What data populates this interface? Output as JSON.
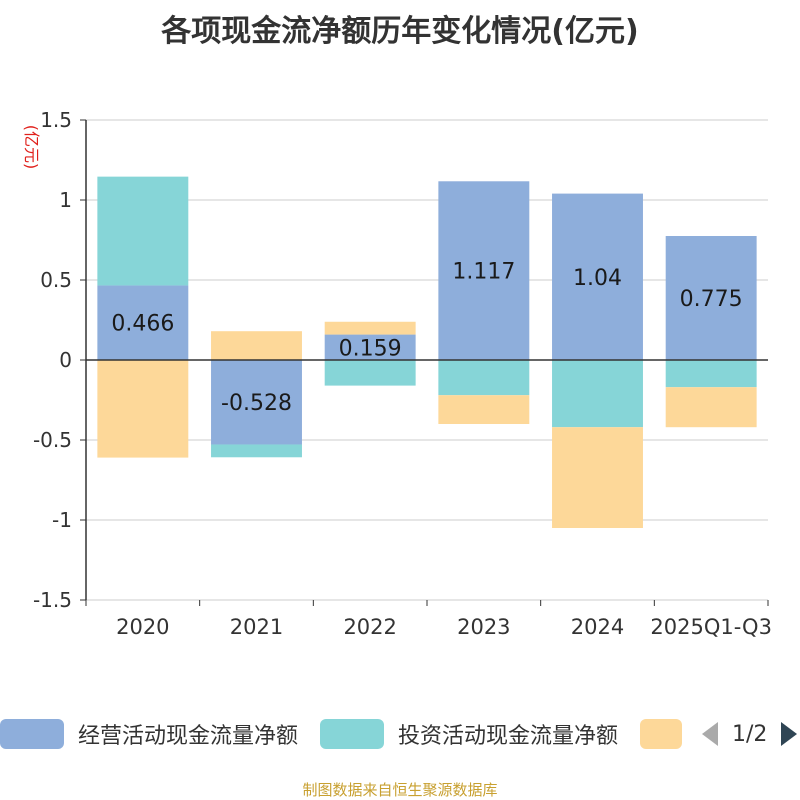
{
  "chart_data": {
    "type": "bar",
    "stacked": true,
    "title": "各项现金流净额历年变化情况(亿元)",
    "ylabel": "(亿元)",
    "xlabel": "",
    "ylim": [
      -1.5,
      1.5
    ],
    "yticks": [
      1.5,
      1,
      0.5,
      0,
      -0.5,
      -1,
      -1.5
    ],
    "ytick_labels": [
      "1.5",
      "1",
      "0.5",
      "0",
      "-0.5",
      "-1",
      "-1.5"
    ],
    "grid": true,
    "categories": [
      "2020",
      "2021",
      "2022",
      "2023",
      "2024",
      "2025Q1-Q3"
    ],
    "series": [
      {
        "name": "经营活动现金流量净额",
        "color": "#8eaedb",
        "values": [
          0.466,
          -0.528,
          0.159,
          1.117,
          1.04,
          0.775
        ],
        "labels": [
          "0.466",
          "-0.528",
          "0.159",
          "1.117",
          "1.04",
          "0.775"
        ]
      },
      {
        "name": "投资活动现金流量净额",
        "color": "#86d5d7",
        "values": [
          0.68,
          -0.08,
          -0.16,
          -0.22,
          -0.42,
          -0.17
        ]
      },
      {
        "name": "",
        "color": "#fdd899",
        "values": [
          -0.61,
          0.18,
          0.08,
          -0.18,
          -0.63,
          -0.25
        ]
      }
    ]
  },
  "legend": {
    "items": [
      {
        "label": "经营活动现金流量净额",
        "color": "#8eaedb"
      },
      {
        "label": "投资活动现金流量净额",
        "color": "#86d5d7"
      },
      {
        "label": "",
        "color": "#fdd899"
      }
    ],
    "page": "1/2"
  },
  "source": "制图数据来自恒生聚源数据库"
}
